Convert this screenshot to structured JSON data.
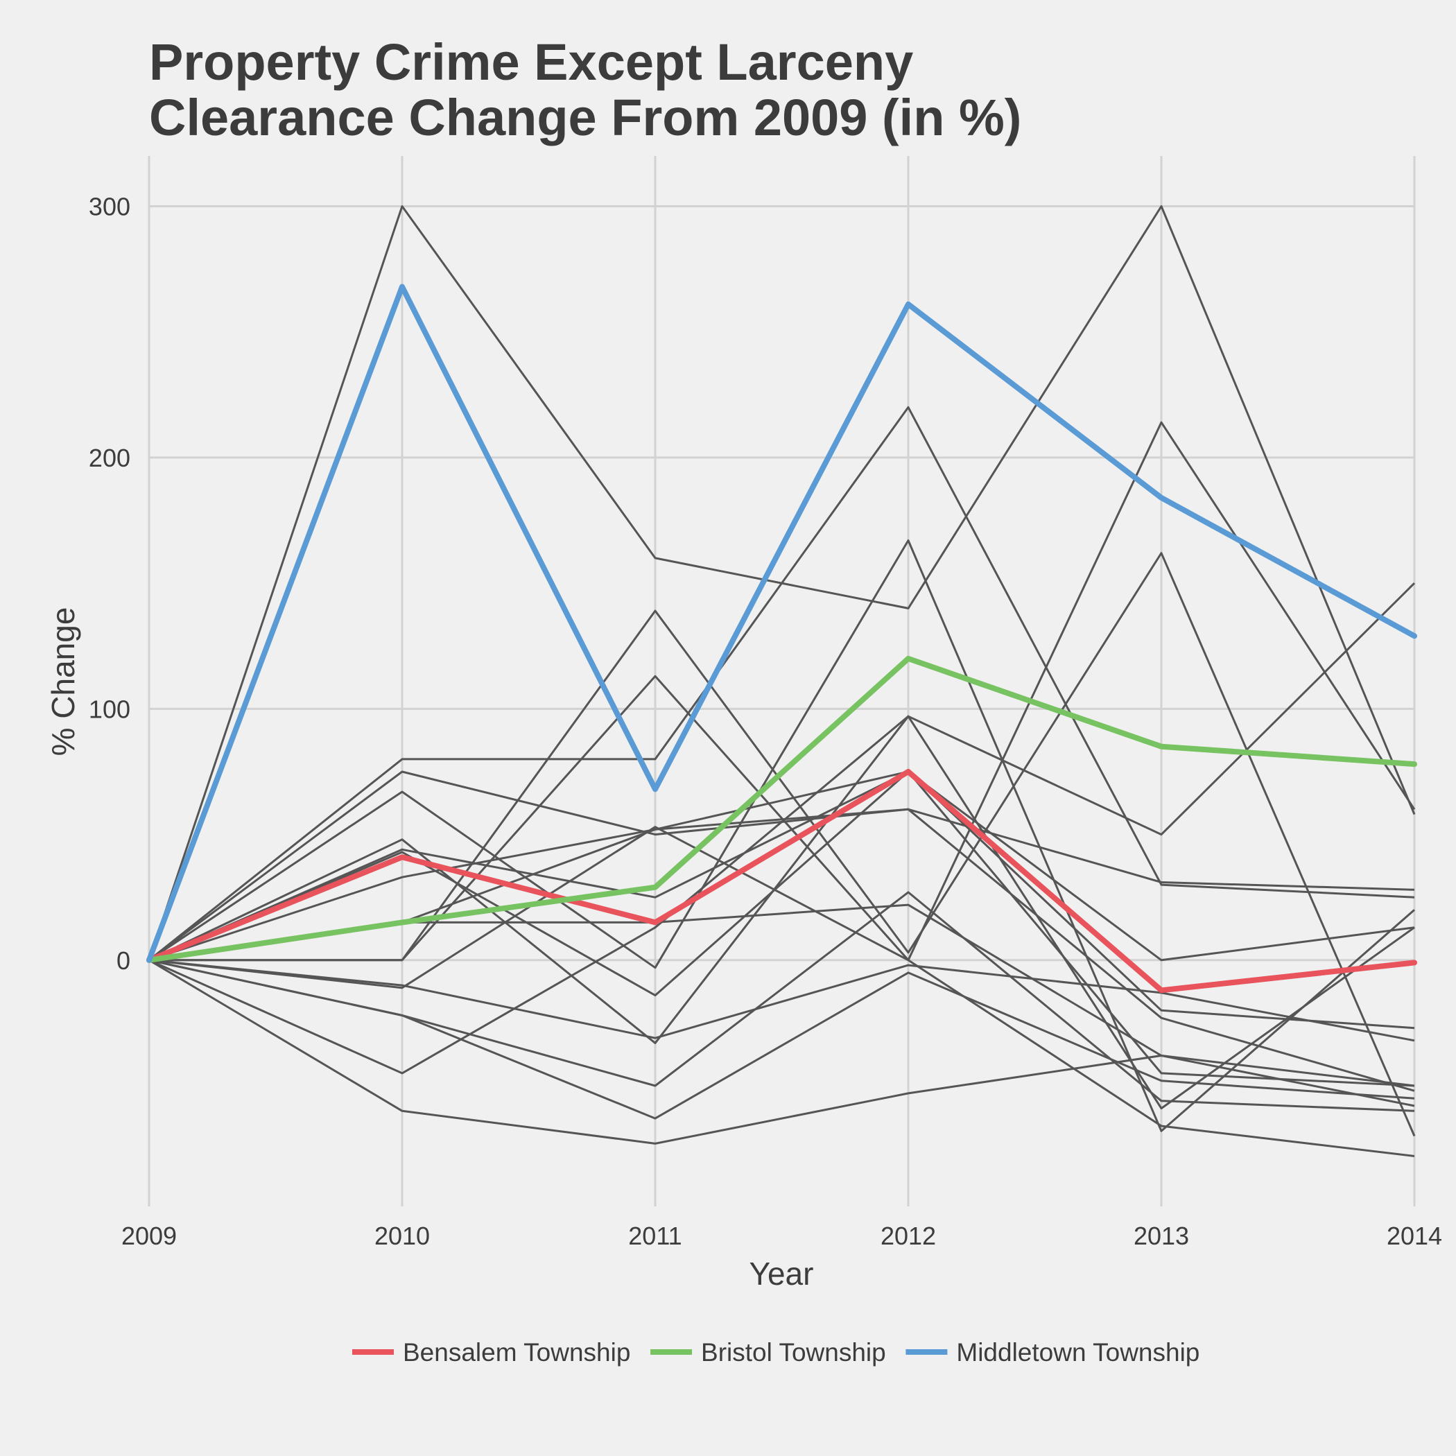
{
  "chart_data": {
    "type": "line",
    "title": [
      "Property Crime Except Larceny",
      "Clearance Change From 2009 (in %)"
    ],
    "xlabel": "Year",
    "ylabel": "% Change",
    "x": [
      2009,
      2010,
      2011,
      2012,
      2013,
      2014
    ],
    "xticks": [
      "2009",
      "2010",
      "2011",
      "2012",
      "2013",
      "2014"
    ],
    "yticks": [
      0,
      100,
      200,
      300
    ],
    "ylim": [
      -98,
      320
    ],
    "grid": true,
    "legend_position": "bottom",
    "background_series_color": "#555555",
    "background_series": [
      [
        0,
        300,
        160,
        140,
        300,
        58
      ],
      [
        0,
        0,
        113,
        0,
        214,
        60
      ],
      [
        0,
        80,
        80,
        220,
        30,
        25
      ],
      [
        0,
        75,
        50,
        60,
        31,
        28
      ],
      [
        0,
        67,
        -3,
        167,
        -68,
        20
      ],
      [
        0,
        48,
        -33,
        97,
        -59,
        13
      ],
      [
        0,
        -45,
        13,
        97,
        50,
        150
      ],
      [
        0,
        44,
        25,
        75,
        0,
        13
      ],
      [
        0,
        43,
        -14,
        75,
        -20,
        -27
      ],
      [
        0,
        33,
        52,
        75,
        -45,
        -50
      ],
      [
        0,
        0,
        139,
        3,
        162,
        -70
      ],
      [
        0,
        -11,
        53,
        0,
        -66,
        -78
      ],
      [
        0,
        -10,
        -31,
        -2,
        -13,
        -32
      ],
      [
        0,
        -22,
        -50,
        27,
        -56,
        -60
      ],
      [
        0,
        -22,
        -63,
        -5,
        -48,
        -55
      ],
      [
        0,
        -60,
        -73,
        -53,
        -38,
        -50
      ],
      [
        0,
        15,
        15,
        22,
        -38,
        -58
      ],
      [
        0,
        15,
        52,
        60,
        -23,
        -52
      ]
    ],
    "series": [
      {
        "name": "Bensalem Township",
        "color": "#e8535c",
        "values": [
          0,
          41,
          15,
          75,
          -12,
          -1
        ]
      },
      {
        "name": "Bristol Township",
        "color": "#77c261",
        "values": [
          0,
          15,
          29,
          120,
          85,
          78
        ]
      },
      {
        "name": "Middletown Township",
        "color": "#5a9bd5",
        "values": [
          0,
          268,
          68,
          261,
          184,
          129
        ]
      }
    ]
  }
}
